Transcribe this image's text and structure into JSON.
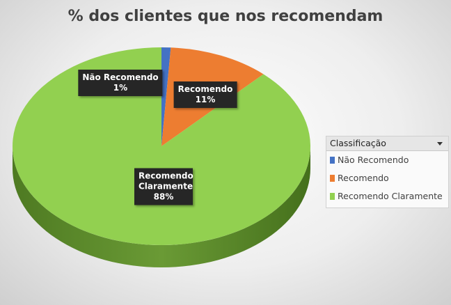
{
  "chart_data": {
    "type": "pie",
    "title": "% dos clientes que nos recomendam",
    "categories": [
      "Não Recomendo",
      "Recomendo",
      "Recomendo Claramente"
    ],
    "values": [
      1,
      11,
      88
    ],
    "value_labels": [
      "1%",
      "11%",
      "88%"
    ],
    "colors": [
      "#4472c4",
      "#ed7d31",
      "#92d050"
    ],
    "legend_title": "Classificação",
    "legend": "right"
  }
}
